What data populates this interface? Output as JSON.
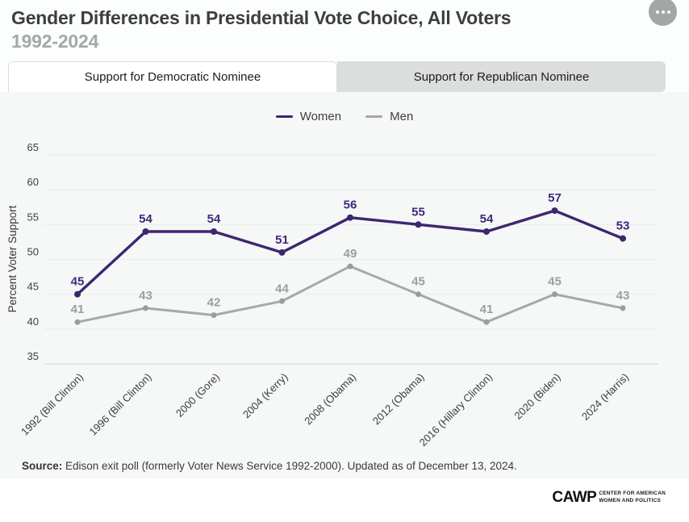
{
  "header": {
    "title": "Gender Differences in Presidential Vote Choice, All Voters",
    "subtitle": "1992-2024"
  },
  "tabs": [
    {
      "label": "Support for Democratic Nominee",
      "active": true
    },
    {
      "label": "Support for Republican Nominee",
      "active": false
    }
  ],
  "legend": [
    {
      "label": "Women",
      "color": "#3d2671"
    },
    {
      "label": "Men",
      "color": "#a7a7a7"
    }
  ],
  "chart_data": {
    "type": "line",
    "title": "Gender Differences in Presidential Vote Choice, All Voters 1992-2024",
    "categories": [
      "1992 (Bill Clinton)",
      "1996 (Bill Clinton)",
      "2000 (Gore)",
      "2004 (Kerry)",
      "2008 (Obama)",
      "2012 (Obama)",
      "2016 (Hillary Clinton)",
      "2020 (Biden)",
      "2024 (Harris)"
    ],
    "series": [
      {
        "name": "Women",
        "values": [
          45,
          54,
          54,
          51,
          56,
          55,
          54,
          57,
          53
        ],
        "color": "#3d2671",
        "label_color": "#42297a",
        "dot_color": "#3d2671"
      },
      {
        "name": "Men",
        "values": [
          41,
          43,
          42,
          44,
          49,
          45,
          41,
          45,
          43
        ],
        "color": "#a7a9a9",
        "label_color": "#9c9ea0",
        "dot_color": "#9b9d9d"
      }
    ],
    "xlabel": "",
    "ylabel": "Percent Voter Support",
    "yticks": [
      35,
      40,
      45,
      50,
      55,
      60,
      65
    ],
    "ylim": [
      35,
      65
    ],
    "grid": true,
    "legend_position": "top"
  },
  "source": {
    "label": "Source:",
    "text": " Edison exit poll (formerly Voter News Service 1992-2000). Updated as of December 13, 2024."
  },
  "footer": {
    "logo_main": "CAWP",
    "logo_sub_line1": "CENTER FOR AMERICAN",
    "logo_sub_line2": "WOMEN AND POLITICS"
  }
}
